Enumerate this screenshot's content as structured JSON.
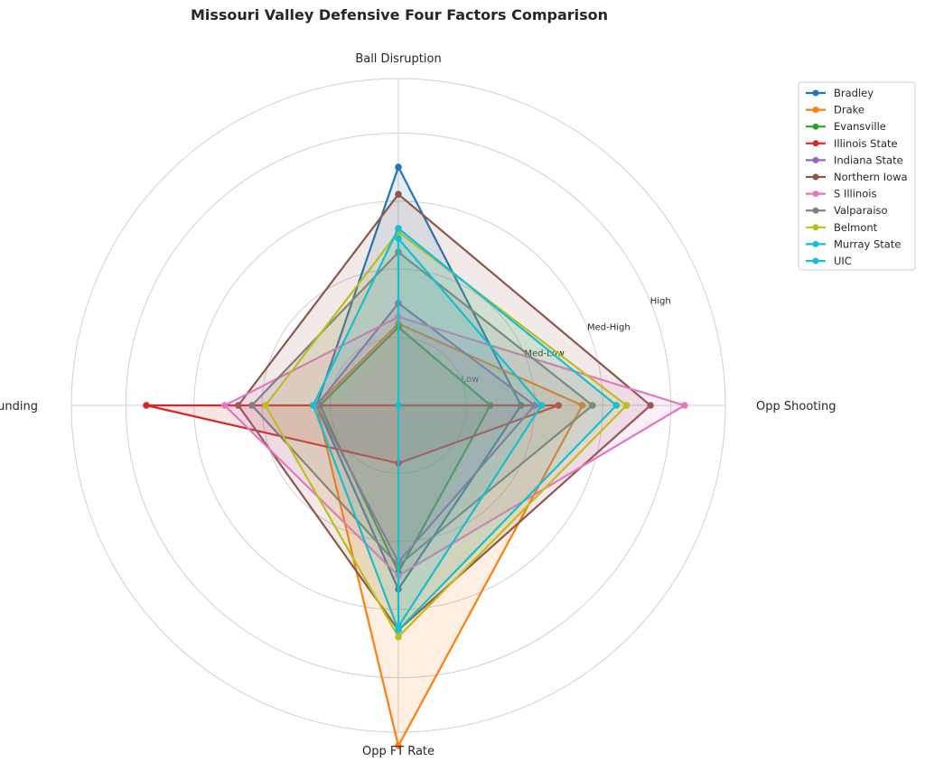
{
  "chart_data": {
    "type": "radar",
    "title": "Missouri Valley Defensive Four Factors Comparison",
    "axes": [
      "Ball Disruption",
      "Opp Shooting",
      "Opp FT Rate",
      "Def Rebounding"
    ],
    "ring_labels": [
      "Low",
      "Med-Low",
      "Med-High",
      "High"
    ],
    "rlim": [
      0,
      4.8
    ],
    "grid": true,
    "legend_position": "upper-right, outside plot",
    "series": [
      {
        "name": "Bradley",
        "color": "#1f77b4",
        "values": [
          3.5,
          1.8,
          2.7,
          1.2
        ]
      },
      {
        "name": "Drake",
        "color": "#ff7f0e",
        "values": [
          1.2,
          2.7,
          5.0,
          1.2
        ]
      },
      {
        "name": "Evansville",
        "color": "#2ca02c",
        "values": [
          1.15,
          1.35,
          2.45,
          1.15
        ]
      },
      {
        "name": "Illinois State",
        "color": "#d62728",
        "values": [
          0.0,
          2.35,
          0.85,
          3.7
        ]
      },
      {
        "name": "Indiana State",
        "color": "#9467bd",
        "values": [
          1.5,
          2.0,
          2.3,
          1.2
        ]
      },
      {
        "name": "Northern Iowa",
        "color": "#8c564b",
        "values": [
          3.1,
          3.7,
          3.3,
          2.35
        ]
      },
      {
        "name": "S Illinois",
        "color": "#e377c2",
        "values": [
          1.3,
          4.2,
          2.5,
          2.55
        ]
      },
      {
        "name": "Valparaiso",
        "color": "#7f7f7f",
        "values": [
          2.25,
          2.85,
          2.35,
          2.15
        ]
      },
      {
        "name": "Belmont",
        "color": "#bcbd22",
        "values": [
          2.55,
          3.35,
          3.4,
          1.95
        ]
      },
      {
        "name": "Murray State",
        "color": "#17becf",
        "values": [
          2.6,
          3.2,
          3.3,
          1.25
        ]
      },
      {
        "name": "UIC",
        "color": "#17becf",
        "values": [
          2.45,
          2.1,
          3.25,
          0.0
        ]
      }
    ]
  }
}
